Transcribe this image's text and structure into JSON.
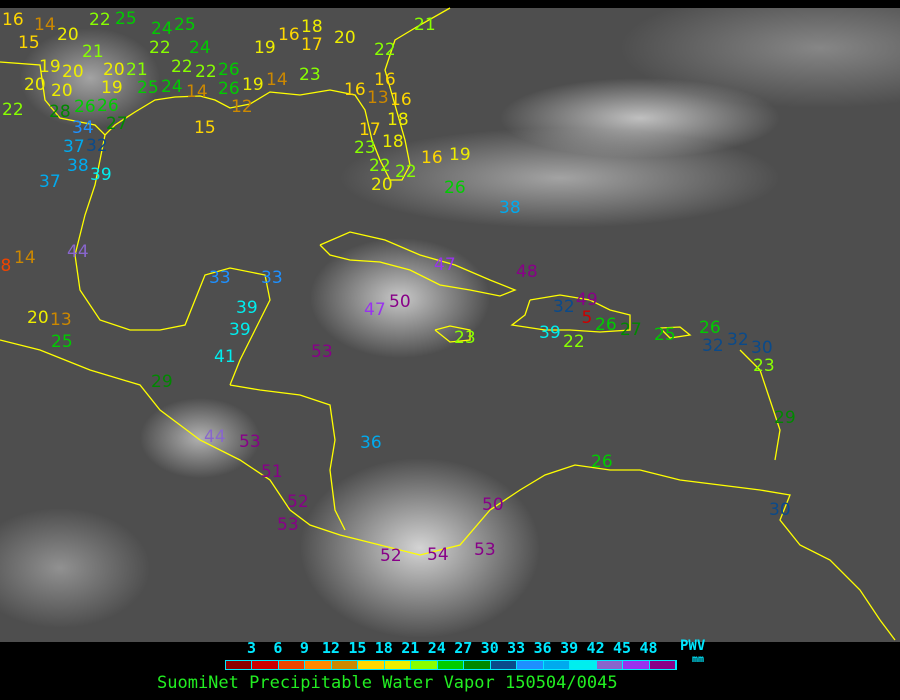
{
  "title": "SuomiNet Precipitable Water Vapor 150504/0045",
  "legend": {
    "ticks": [
      "3",
      "6",
      "9",
      "12",
      "15",
      "18",
      "21",
      "24",
      "27",
      "30",
      "33",
      "36",
      "39",
      "42",
      "45",
      "48"
    ],
    "unit_label": "PWV",
    "unit": "mm",
    "colors": [
      "#8b0000",
      "#cc0000",
      "#ee4400",
      "#ff8800",
      "#cc8800",
      "#ffd700",
      "#eeee00",
      "#88ff00",
      "#00cc00",
      "#008800",
      "#0a4a8a",
      "#1e90ff",
      "#00aaee",
      "#00eeee",
      "#8866cc",
      "#9933ee",
      "#880088"
    ]
  },
  "coastline_color": "#ffff00",
  "stations_pwv_mm": [
    16,
    14,
    15,
    20,
    21,
    19,
    20,
    20,
    20,
    20,
    21,
    19,
    26,
    25,
    22,
    28,
    26,
    27,
    34,
    32,
    37,
    38,
    39,
    37,
    25,
    22,
    25,
    24,
    22,
    24,
    22,
    24,
    22,
    26,
    26,
    14,
    15,
    19,
    14,
    12,
    23,
    17,
    19,
    16,
    18,
    20,
    22,
    21,
    16,
    16,
    13,
    17,
    16,
    18,
    23,
    18,
    22,
    20,
    22,
    16,
    19,
    26,
    38,
    44,
    14,
    8,
    33,
    33,
    39,
    39,
    41,
    20,
    13,
    25,
    29,
    47,
    48,
    47,
    50,
    53,
    23,
    39,
    22,
    49,
    5,
    32,
    26,
    27,
    25,
    26,
    32,
    32,
    30,
    23,
    29,
    36,
    44,
    53,
    51,
    52,
    53,
    52,
    54,
    53,
    50,
    26,
    30
  ]
}
